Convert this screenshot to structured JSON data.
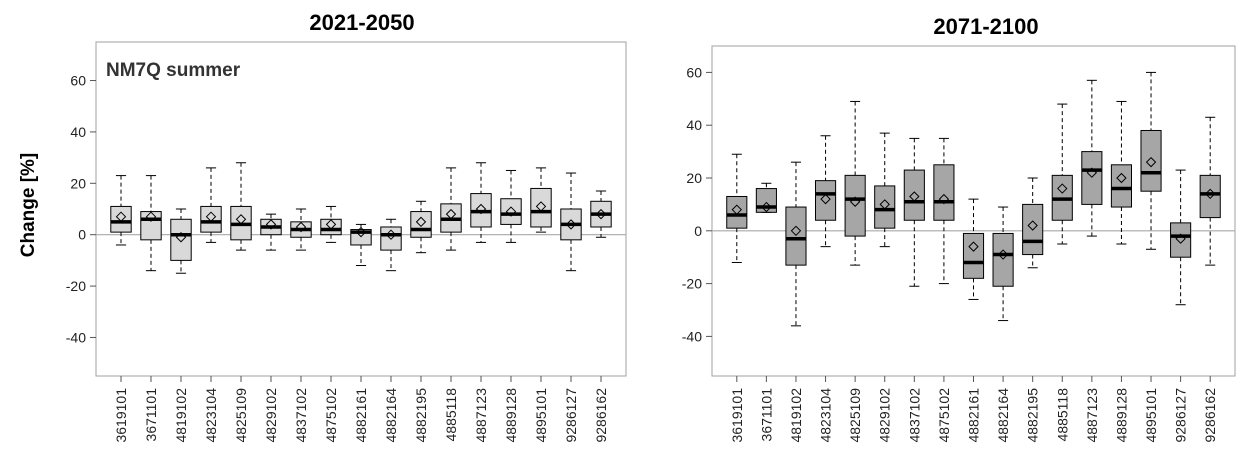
{
  "figure": {
    "ylabel": "Change [%]"
  },
  "chart_data": [
    {
      "type": "boxplot",
      "title": "2021-2050",
      "annotation": "NM7Q summer",
      "ylabel": "Change [%]",
      "ylim": [
        -55,
        75
      ],
      "yticks": [
        -40,
        -20,
        0,
        20,
        40,
        60
      ],
      "box_color": "#d9d9d9",
      "reference_line": 0,
      "categories": [
        "3619101",
        "3671101",
        "4819102",
        "4823104",
        "4825109",
        "4829102",
        "4837102",
        "4875102",
        "4882161",
        "4882164",
        "4882195",
        "4885118",
        "4887123",
        "4889128",
        "4895101",
        "9286127",
        "9286162"
      ],
      "boxes": [
        {
          "whisker_low": -4,
          "q1": 1,
          "median": 5,
          "q3": 11,
          "whisker_high": 23,
          "mean": 7
        },
        {
          "whisker_low": -14,
          "q1": -2,
          "median": 6,
          "q3": 9,
          "whisker_high": 23,
          "mean": 7
        },
        {
          "whisker_low": -15,
          "q1": -10,
          "median": 0,
          "q3": 6,
          "whisker_high": 10,
          "mean": -1
        },
        {
          "whisker_low": -3,
          "q1": 1,
          "median": 5,
          "q3": 11,
          "whisker_high": 26,
          "mean": 7
        },
        {
          "whisker_low": -6,
          "q1": -2,
          "median": 4,
          "q3": 11,
          "whisker_high": 28,
          "mean": 6
        },
        {
          "whisker_low": -6,
          "q1": 0,
          "median": 3,
          "q3": 6,
          "whisker_high": 8,
          "mean": 4
        },
        {
          "whisker_low": -6,
          "q1": -1,
          "median": 2,
          "q3": 5,
          "whisker_high": 10,
          "mean": 3
        },
        {
          "whisker_low": -3,
          "q1": 0,
          "median": 2,
          "q3": 6,
          "whisker_high": 11,
          "mean": 4
        },
        {
          "whisker_low": -12,
          "q1": -4,
          "median": 1,
          "q3": 2,
          "whisker_high": 4,
          "mean": 1
        },
        {
          "whisker_low": -14,
          "q1": -6,
          "median": 0,
          "q3": 3,
          "whisker_high": 6,
          "mean": 0
        },
        {
          "whisker_low": -7,
          "q1": -1,
          "median": 2,
          "q3": 9,
          "whisker_high": 13,
          "mean": 5
        },
        {
          "whisker_low": -6,
          "q1": 1,
          "median": 6,
          "q3": 12,
          "whisker_high": 26,
          "mean": 8
        },
        {
          "whisker_low": -3,
          "q1": 3,
          "median": 9,
          "q3": 16,
          "whisker_high": 28,
          "mean": 10
        },
        {
          "whisker_low": -3,
          "q1": 4,
          "median": 8,
          "q3": 14,
          "whisker_high": 25,
          "mean": 9
        },
        {
          "whisker_low": 1,
          "q1": 3,
          "median": 9,
          "q3": 18,
          "whisker_high": 26,
          "mean": 11
        },
        {
          "whisker_low": -14,
          "q1": -2,
          "median": 4,
          "q3": 10,
          "whisker_high": 24,
          "mean": 4
        },
        {
          "whisker_low": -1,
          "q1": 3,
          "median": 8,
          "q3": 13,
          "whisker_high": 17,
          "mean": 8
        }
      ]
    },
    {
      "type": "boxplot",
      "title": "2071-2100",
      "annotation": "",
      "ylim": [
        -55,
        70
      ],
      "yticks": [
        -40,
        -20,
        0,
        20,
        40,
        60
      ],
      "box_color": "#a6a6a6",
      "reference_line": 0,
      "categories": [
        "3619101",
        "3671101",
        "4819102",
        "4823104",
        "4825109",
        "4829102",
        "4837102",
        "4875102",
        "4882161",
        "4882164",
        "4882195",
        "4885118",
        "4887123",
        "4889128",
        "4895101",
        "9286127",
        "9286162"
      ],
      "boxes": [
        {
          "whisker_low": -12,
          "q1": 1,
          "median": 6,
          "q3": 13,
          "whisker_high": 29,
          "mean": 8
        },
        {
          "whisker_low": 7,
          "q1": 7,
          "median": 9,
          "q3": 16,
          "whisker_high": 18,
          "mean": 9
        },
        {
          "whisker_low": -36,
          "q1": -13,
          "median": -3,
          "q3": 9,
          "whisker_high": 26,
          "mean": 0
        },
        {
          "whisker_low": -6,
          "q1": 4,
          "median": 14,
          "q3": 19,
          "whisker_high": 36,
          "mean": 12
        },
        {
          "whisker_low": -13,
          "q1": -2,
          "median": 12,
          "q3": 21,
          "whisker_high": 49,
          "mean": 11
        },
        {
          "whisker_low": -6,
          "q1": 1,
          "median": 8,
          "q3": 17,
          "whisker_high": 37,
          "mean": 10
        },
        {
          "whisker_low": -21,
          "q1": 4,
          "median": 11,
          "q3": 23,
          "whisker_high": 35,
          "mean": 13
        },
        {
          "whisker_low": -20,
          "q1": 4,
          "median": 11,
          "q3": 25,
          "whisker_high": 35,
          "mean": 12
        },
        {
          "whisker_low": -26,
          "q1": -18,
          "median": -12,
          "q3": -1,
          "whisker_high": 12,
          "mean": -6
        },
        {
          "whisker_low": -34,
          "q1": -21,
          "median": -9,
          "q3": -1,
          "whisker_high": 9,
          "mean": -9
        },
        {
          "whisker_low": -14,
          "q1": -9,
          "median": -4,
          "q3": 10,
          "whisker_high": 20,
          "mean": 2
        },
        {
          "whisker_low": -5,
          "q1": 4,
          "median": 12,
          "q3": 21,
          "whisker_high": 48,
          "mean": 16
        },
        {
          "whisker_low": -2,
          "q1": 10,
          "median": 23,
          "q3": 30,
          "whisker_high": 57,
          "mean": 22
        },
        {
          "whisker_low": -5,
          "q1": 9,
          "median": 16,
          "q3": 25,
          "whisker_high": 49,
          "mean": 20
        },
        {
          "whisker_low": -7,
          "q1": 15,
          "median": 22,
          "q3": 38,
          "whisker_high": 60,
          "mean": 26
        },
        {
          "whisker_low": -28,
          "q1": -10,
          "median": -2,
          "q3": 3,
          "whisker_high": 23,
          "mean": -3
        },
        {
          "whisker_low": -13,
          "q1": 5,
          "median": 14,
          "q3": 21,
          "whisker_high": 43,
          "mean": 14
        }
      ]
    }
  ]
}
